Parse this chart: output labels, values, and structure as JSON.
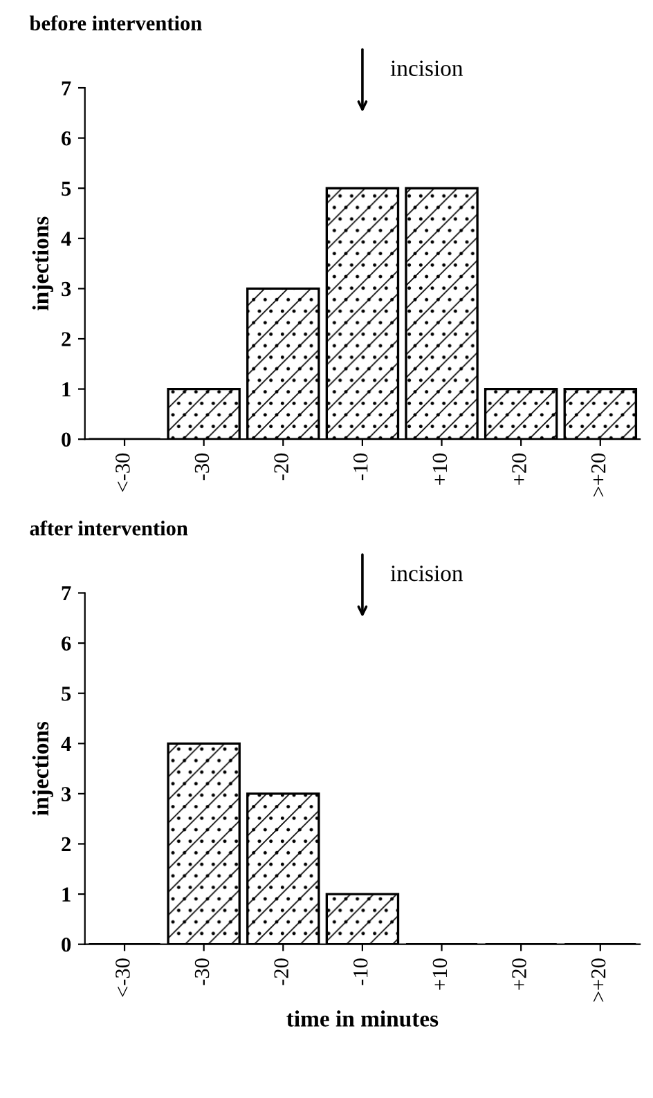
{
  "chart_data": [
    {
      "type": "bar",
      "title": "before intervention",
      "ylabel": "injections",
      "categories": [
        "<-30",
        "-30",
        "-20",
        "-10",
        "+10",
        "+20",
        ">+20"
      ],
      "values": [
        0,
        1,
        3,
        5,
        5,
        1,
        1
      ],
      "color": "#000000",
      "ylim": [
        0,
        7
      ],
      "yticks": [
        0,
        1,
        2,
        3,
        4,
        5,
        6,
        7
      ],
      "grid": false,
      "legend": false,
      "annotations": [
        "incision"
      ]
    },
    {
      "type": "bar",
      "title": "after intervention",
      "ylabel": "injections",
      "xlabel": "time in minutes",
      "categories": [
        "<-30",
        "-30",
        "-20",
        "-10",
        "+10",
        "+20",
        ">+20"
      ],
      "values": [
        0,
        4,
        3,
        1,
        0,
        0,
        0
      ],
      "color": "#000000",
      "ylim": [
        0,
        7
      ],
      "yticks": [
        0,
        1,
        2,
        3,
        4,
        5,
        6,
        7
      ],
      "grid": false,
      "legend": false,
      "annotations": [
        "incision"
      ]
    }
  ]
}
